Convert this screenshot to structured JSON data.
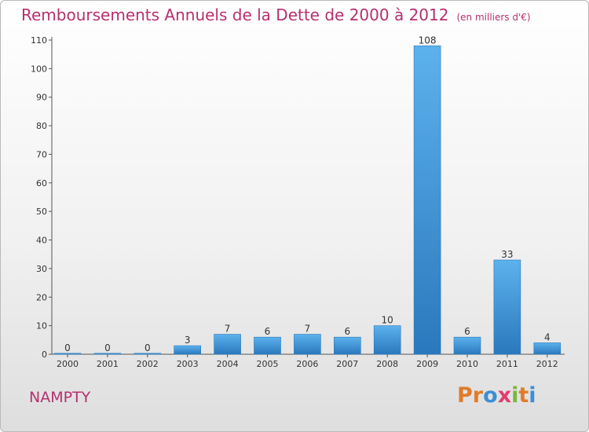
{
  "chart_data": {
    "type": "bar",
    "title": "Remboursements Annuels de la Dette de 2000 à 2012",
    "subtitle": "(en milliers d'€)",
    "categories": [
      "2000",
      "2001",
      "2002",
      "2003",
      "2004",
      "2005",
      "2006",
      "2007",
      "2008",
      "2009",
      "2010",
      "2011",
      "2012"
    ],
    "values": [
      0,
      0,
      0,
      3,
      7,
      6,
      7,
      6,
      10,
      108,
      6,
      33,
      4
    ],
    "data_labels": [
      "0",
      "0",
      "0",
      "3",
      "7",
      "6",
      "7",
      "6",
      "10",
      "108",
      "6",
      "33",
      "4"
    ],
    "ylim": [
      0,
      110
    ],
    "yticks": [
      0,
      10,
      20,
      30,
      40,
      50,
      60,
      70,
      80,
      90,
      100,
      110
    ],
    "ytick_labels": [
      "0",
      "10",
      "20",
      "30",
      "40",
      "50",
      "60",
      "70",
      "80",
      "90",
      "100",
      "110"
    ],
    "xlabel": "",
    "ylabel": "",
    "grid": false,
    "bar_color": "#3f94d6"
  },
  "footer": {
    "commune": "NAMPTY",
    "logo_text": "Proxiti",
    "logo_letters": [
      {
        "ch": "P",
        "color": "#e07b2a"
      },
      {
        "ch": "r",
        "color": "#e07b2a"
      },
      {
        "ch": "o",
        "color": "#3c8ed6"
      },
      {
        "ch": "x",
        "color": "#e23d6e"
      },
      {
        "ch": "i",
        "color": "#7ab83a"
      },
      {
        "ch": "t",
        "color": "#e07b2a"
      },
      {
        "ch": "i",
        "color": "#3c8ed6"
      }
    ]
  }
}
